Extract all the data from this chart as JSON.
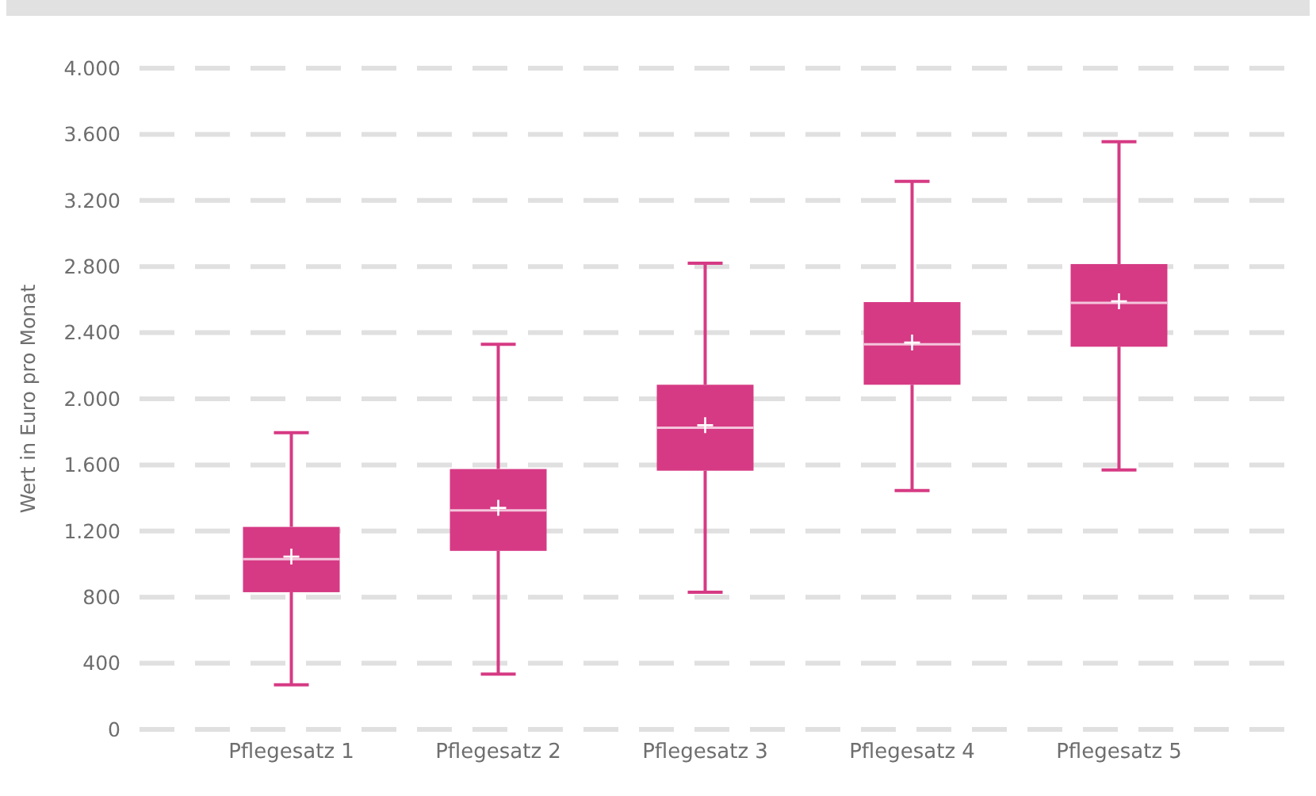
{
  "chart_data": {
    "type": "box",
    "ylabel": "Wert in Euro pro Monat",
    "categories": [
      "Pflegesatz 1",
      "Pflegesatz 2",
      "Pflegesatz 3",
      "Pflegesatz 4",
      "Pflegesatz 5"
    ],
    "series": [
      {
        "color": "#d63a84",
        "boxes": [
          {
            "low": 270,
            "q1": 830,
            "median": 1030,
            "q3": 1225,
            "high": 1795,
            "mean": 1045
          },
          {
            "low": 335,
            "q1": 1080,
            "median": 1325,
            "q3": 1575,
            "high": 2330,
            "mean": 1340
          },
          {
            "low": 830,
            "q1": 1565,
            "median": 1825,
            "q3": 2085,
            "high": 2820,
            "mean": 1840
          },
          {
            "low": 1445,
            "q1": 2085,
            "median": 2330,
            "q3": 2585,
            "high": 3315,
            "mean": 2340
          },
          {
            "low": 1570,
            "q1": 2315,
            "median": 2580,
            "q3": 2815,
            "high": 3555,
            "mean": 2590
          }
        ]
      }
    ],
    "ylim": [
      0,
      4000
    ],
    "yticks": [
      {
        "value": 0,
        "label": "0"
      },
      {
        "value": 400,
        "label": "400"
      },
      {
        "value": 800,
        "label": "800"
      },
      {
        "value": 1200,
        "label": "1.200"
      },
      {
        "value": 1600,
        "label": "1.600"
      },
      {
        "value": 2000,
        "label": "2.000"
      },
      {
        "value": 2400,
        "label": "2.400"
      },
      {
        "value": 2800,
        "label": "2.800"
      },
      {
        "value": 3200,
        "label": "3.200"
      },
      {
        "value": 3600,
        "label": "3.600"
      },
      {
        "value": 4000,
        "label": "4.000"
      }
    ],
    "grid": "y"
  }
}
